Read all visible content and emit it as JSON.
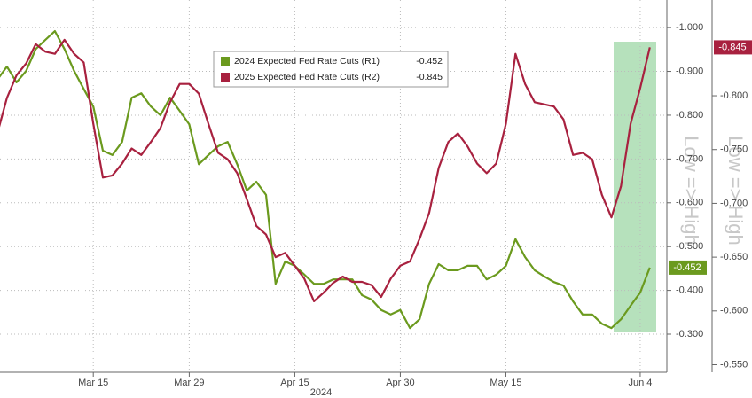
{
  "chart_data": {
    "type": "line",
    "categories": [
      null,
      null,
      null,
      null,
      null,
      null,
      null,
      null,
      null,
      null,
      "Mar 15",
      null,
      null,
      null,
      null,
      null,
      null,
      null,
      null,
      null,
      "Mar 29",
      null,
      null,
      null,
      null,
      null,
      null,
      null,
      null,
      null,
      null,
      "Apr 15",
      null,
      null,
      null,
      null,
      null,
      null,
      null,
      null,
      null,
      null,
      "Apr 30",
      null,
      null,
      null,
      null,
      null,
      null,
      null,
      null,
      null,
      null,
      "May 15",
      null,
      null,
      null,
      null,
      null,
      null,
      null,
      null,
      null,
      null,
      null,
      null,
      null,
      "Jun 4",
      null
    ],
    "xlabel": "2024",
    "y_axis_label": "Low => High",
    "y2_axis_label": "Low => High",
    "ylim": [
      -0.213,
      -1.063
    ],
    "yticks": [
      {
        "value": -1.0,
        "label": "-1.000"
      },
      {
        "value": -0.9,
        "label": "-0.900"
      },
      {
        "value": -0.8,
        "label": "-0.800"
      },
      {
        "value": -0.7,
        "label": "-0.700"
      },
      {
        "value": -0.6,
        "label": "-0.600"
      },
      {
        "value": -0.5,
        "label": "-0.500"
      },
      {
        "value": -0.4,
        "label": "-0.400"
      },
      {
        "value": -0.3,
        "label": "-0.300"
      }
    ],
    "y2lim": [
      -0.543,
      -0.889
    ],
    "y2ticks": [
      {
        "value": -0.8,
        "label": "-0.800"
      },
      {
        "value": -0.75,
        "label": "-0.750"
      },
      {
        "value": -0.7,
        "label": "-0.700"
      },
      {
        "value": -0.65,
        "label": "-0.650"
      },
      {
        "value": -0.6,
        "label": "-0.600"
      },
      {
        "value": -0.55,
        "label": "-0.550"
      }
    ],
    "grid": true,
    "series": [
      {
        "name": "2024 Expected Fed Rate Cuts (R1)",
        "color": "#6b9a1e",
        "axis": "y",
        "values": [
          -0.881,
          -0.911,
          -0.875,
          -0.901,
          -0.951,
          -0.972,
          -0.992,
          -0.951,
          -0.901,
          -0.86,
          -0.82,
          -0.719,
          -0.709,
          -0.739,
          -0.84,
          -0.85,
          -0.82,
          -0.8,
          -0.84,
          -0.81,
          -0.779,
          -0.688,
          -0.709,
          -0.729,
          -0.739,
          -0.688,
          -0.628,
          -0.648,
          -0.618,
          -0.415,
          -0.466,
          -0.456,
          -0.436,
          -0.415,
          -0.415,
          -0.425,
          -0.425,
          -0.425,
          -0.389,
          -0.379,
          -0.355,
          -0.345,
          -0.355,
          -0.314,
          -0.334,
          -0.415,
          -0.46,
          -0.446,
          -0.446,
          -0.456,
          -0.456,
          -0.425,
          -0.436,
          -0.456,
          -0.517,
          -0.476,
          -0.446,
          -0.432,
          -0.419,
          -0.411,
          -0.375,
          -0.345,
          -0.345,
          -0.324,
          -0.314,
          -0.334,
          -0.365,
          -0.395,
          -0.452
        ]
      },
      {
        "name": "2025 Expected Fed Rate Cuts (R2)",
        "color": "#a8213f",
        "axis": "y2",
        "values": [
          -0.765,
          -0.798,
          -0.819,
          -0.83,
          -0.848,
          -0.841,
          -0.839,
          -0.852,
          -0.839,
          -0.831,
          -0.774,
          -0.724,
          -0.726,
          -0.737,
          -0.751,
          -0.745,
          -0.757,
          -0.77,
          -0.794,
          -0.811,
          -0.811,
          -0.802,
          -0.774,
          -0.747,
          -0.741,
          -0.728,
          -0.704,
          -0.679,
          -0.671,
          -0.65,
          -0.654,
          -0.642,
          -0.63,
          -0.609,
          -0.617,
          -0.626,
          -0.632,
          -0.627,
          -0.627,
          -0.624,
          -0.613,
          -0.63,
          -0.642,
          -0.646,
          -0.667,
          -0.691,
          -0.733,
          -0.757,
          -0.765,
          -0.753,
          -0.737,
          -0.728,
          -0.737,
          -0.774,
          -0.839,
          -0.811,
          -0.794,
          -0.792,
          -0.79,
          -0.778,
          -0.745,
          -0.747,
          -0.741,
          -0.708,
          -0.687,
          -0.716,
          -0.774,
          -0.807,
          -0.845
        ]
      }
    ]
  }
}
